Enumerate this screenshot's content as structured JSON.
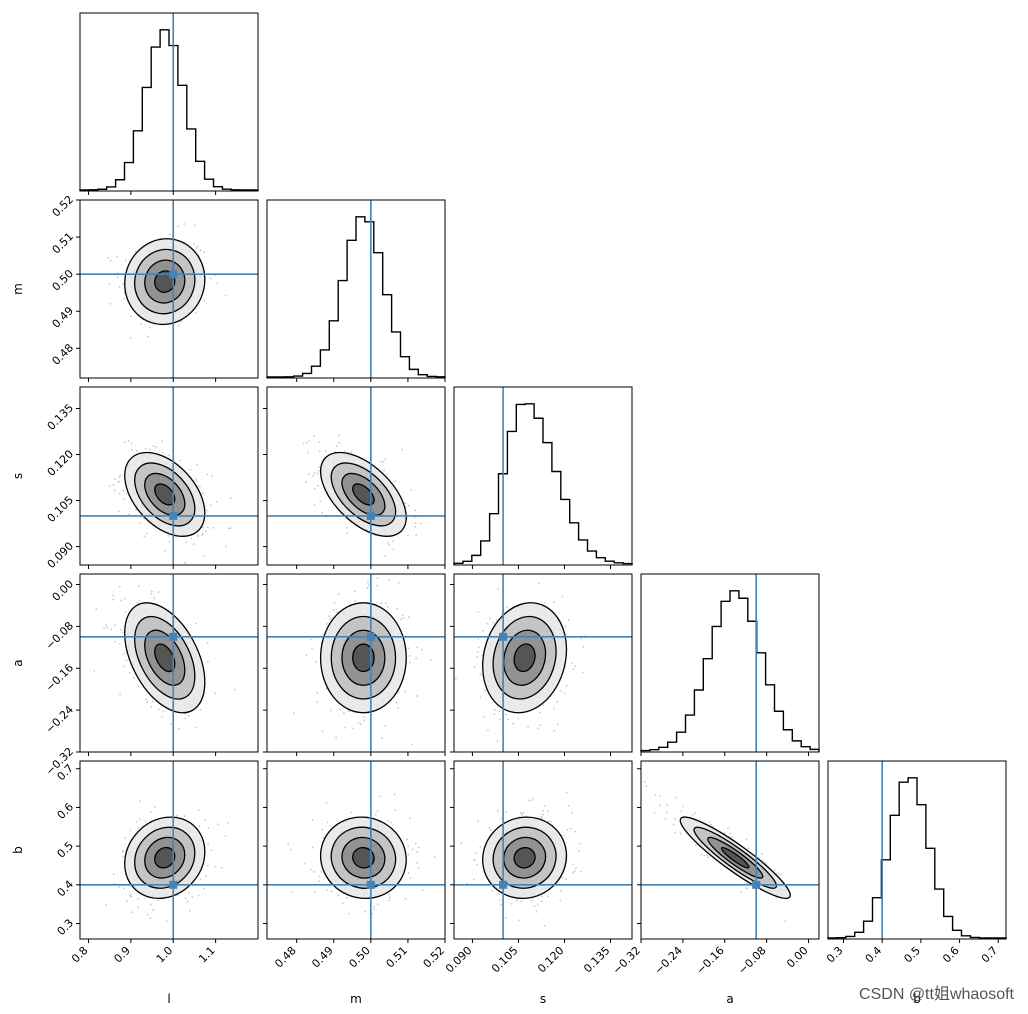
{
  "chart_data": {
    "type": "corner",
    "parameters": [
      "l",
      "m",
      "s",
      "a",
      "b"
    ],
    "truths": [
      1.0,
      0.5,
      0.1,
      -0.1,
      0.4
    ],
    "ranges": [
      [
        0.78,
        1.2
      ],
      [
        0.472,
        0.52
      ],
      [
        0.084,
        0.142
      ],
      [
        -0.32,
        0.02
      ],
      [
        0.26,
        0.72
      ]
    ],
    "ticks": [
      [
        "0.8",
        "0.9",
        "1.0",
        "1.1"
      ],
      [
        "0.48",
        "0.49",
        "0.50",
        "0.51",
        "0.52"
      ],
      [
        "0.090",
        "0.105",
        "0.120",
        "0.135"
      ],
      [
        "−0.32",
        "−0.24",
        "−0.16",
        "−0.08",
        "0.00"
      ],
      [
        "0.3",
        "0.4",
        "0.5",
        "0.6",
        "0.7"
      ]
    ],
    "posterior_mean": [
      0.98,
      0.498,
      0.107,
      -0.14,
      0.47
    ],
    "posterior_std": [
      0.045,
      0.0055,
      0.0065,
      0.05,
      0.05
    ],
    "correlations": {
      "m-l": 0.05,
      "s-l": -0.45,
      "s-m": -0.55,
      "a-l": -0.45,
      "a-m": 0.0,
      "a-s": 0.15,
      "b-l": 0.15,
      "b-m": -0.05,
      "b-s": 0.05,
      "b-a": -0.92
    },
    "contour_levels_sigma": [
      0.5,
      1.0,
      1.5,
      2.0
    ],
    "histogram_bins": 20,
    "truth_color": "#4682b4",
    "line_color": "#000000"
  },
  "watermark": "CSDN @tt姐whaosoft"
}
